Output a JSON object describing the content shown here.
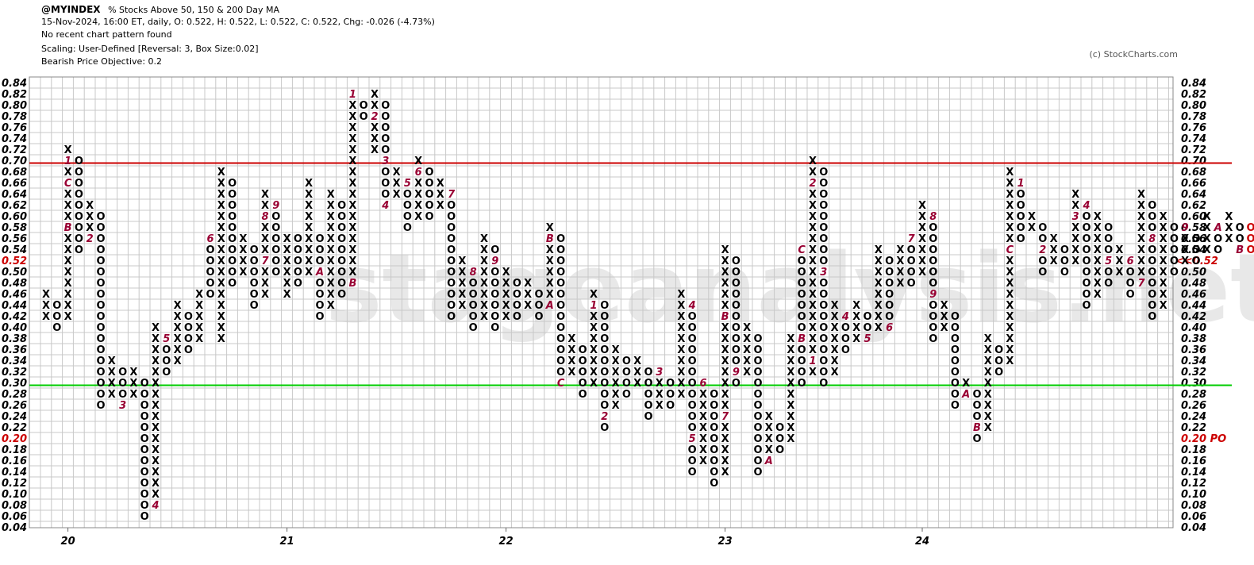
{
  "header": {
    "symbol": "@MYINDEX",
    "description": "% Stocks Above 50, 150 & 200 Day MA",
    "ohlc_line": "15-Nov-2024, 16:00 ET, daily, O: 0.522, H: 0.522, L: 0.522, C: 0.522, Chg: -0.026 (-4.73%)",
    "pattern": "No recent chart pattern found",
    "scaling": "Scaling: User-Defined [Reversal: 3, Box Size:0.02]",
    "objective": "Bearish Price Objective: 0.2"
  },
  "copyright": "(c) StockCharts.com",
  "watermark": "stageanalysis.net",
  "chart_data": {
    "type": "point-and-figure",
    "box_size": 0.02,
    "reversal": 3,
    "ylim": [
      0.04,
      0.84
    ],
    "y_ticks": [
      "0.84",
      "0.82",
      "0.80",
      "0.78",
      "0.76",
      "0.74",
      "0.72",
      "0.70",
      "0.68",
      "0.66",
      "0.64",
      "0.62",
      "0.60",
      "0.58",
      "0.56",
      "0.54",
      "0.52",
      "0.50",
      "0.48",
      "0.46",
      "0.44",
      "0.42",
      "0.40",
      "0.38",
      "0.36",
      "0.34",
      "0.32",
      "0.30",
      "0.28",
      "0.26",
      "0.24",
      "0.22",
      "0.20",
      "0.18",
      "0.16",
      "0.14",
      "0.12",
      "0.10",
      "0.08",
      "0.06",
      "0.04"
    ],
    "x_labels": [
      {
        "label": "20",
        "column": 2
      },
      {
        "label": "21",
        "column": 22
      },
      {
        "label": "22",
        "column": 42
      },
      {
        "label": "23",
        "column": 62
      },
      {
        "label": "24",
        "column": 80
      }
    ],
    "current_price": {
      "value": 0.52,
      "left_label": "0.52",
      "right_label": "<<0.52",
      "color": "#cc0000"
    },
    "price_objective": {
      "value": 0.2,
      "left_label": "0.20",
      "right_label": "0.20 PO",
      "color": "#cc0000"
    },
    "lines": [
      {
        "name": "resistance",
        "value": 0.695,
        "color": "#cc0000"
      },
      {
        "name": "support",
        "value": 0.295,
        "color": "#00cc00"
      }
    ],
    "columns": [
      {
        "t": "X",
        "lo": 0.42,
        "hi": 0.46
      },
      {
        "t": "O",
        "lo": 0.4,
        "hi": 0.44
      },
      {
        "t": "X",
        "lo": 0.42,
        "hi": 0.72,
        "m": [
          [
            0.7,
            "1"
          ],
          [
            0.66,
            "C"
          ],
          [
            0.58,
            "B"
          ]
        ]
      },
      {
        "t": "O",
        "lo": 0.54,
        "hi": 0.7
      },
      {
        "t": "X",
        "lo": 0.56,
        "hi": 0.62,
        "m": [
          [
            0.56,
            "2"
          ]
        ]
      },
      {
        "t": "O",
        "lo": 0.26,
        "hi": 0.6
      },
      {
        "t": "X",
        "lo": 0.28,
        "hi": 0.34
      },
      {
        "t": "O",
        "lo": 0.26,
        "hi": 0.32,
        "m": [
          [
            0.26,
            "3"
          ]
        ]
      },
      {
        "t": "X",
        "lo": 0.28,
        "hi": 0.32
      },
      {
        "t": "O",
        "lo": 0.06,
        "hi": 0.3
      },
      {
        "t": "X",
        "lo": 0.08,
        "hi": 0.4,
        "m": [
          [
            0.08,
            "4"
          ]
        ]
      },
      {
        "t": "O",
        "lo": 0.32,
        "hi": 0.38,
        "m": [
          [
            0.38,
            "5"
          ]
        ]
      },
      {
        "t": "X",
        "lo": 0.34,
        "hi": 0.44
      },
      {
        "t": "O",
        "lo": 0.36,
        "hi": 0.42
      },
      {
        "t": "X",
        "lo": 0.38,
        "hi": 0.46
      },
      {
        "t": "O",
        "lo": 0.46,
        "hi": 0.56,
        "m": [
          [
            0.56,
            "6"
          ]
        ]
      },
      {
        "t": "X",
        "lo": 0.38,
        "hi": 0.68
      },
      {
        "t": "O",
        "lo": 0.48,
        "hi": 0.66
      },
      {
        "t": "X",
        "lo": 0.5,
        "hi": 0.56
      },
      {
        "t": "O",
        "lo": 0.44,
        "hi": 0.54
      },
      {
        "t": "X",
        "lo": 0.46,
        "hi": 0.64,
        "m": [
          [
            0.6,
            "8"
          ],
          [
            0.52,
            "7"
          ]
        ]
      },
      {
        "t": "O",
        "lo": 0.5,
        "hi": 0.62,
        "m": [
          [
            0.62,
            "9"
          ]
        ]
      },
      {
        "t": "X",
        "lo": 0.46,
        "hi": 0.56
      },
      {
        "t": "O",
        "lo": 0.48,
        "hi": 0.56
      },
      {
        "t": "X",
        "lo": 0.5,
        "hi": 0.66
      },
      {
        "t": "O",
        "lo": 0.42,
        "hi": 0.56,
        "m": [
          [
            0.5,
            "A"
          ]
        ]
      },
      {
        "t": "X",
        "lo": 0.44,
        "hi": 0.64
      },
      {
        "t": "O",
        "lo": 0.46,
        "hi": 0.62
      },
      {
        "t": "X",
        "lo": 0.48,
        "hi": 0.82,
        "m": [
          [
            0.82,
            "1"
          ],
          [
            0.48,
            "B"
          ]
        ]
      },
      {
        "t": "O",
        "lo": 0.78,
        "hi": 0.8
      },
      {
        "t": "X",
        "lo": 0.72,
        "hi": 0.82,
        "m": [
          [
            0.78,
            "2"
          ]
        ]
      },
      {
        "t": "O",
        "lo": 0.62,
        "hi": 0.8,
        "m": [
          [
            0.7,
            "3"
          ],
          [
            0.62,
            "4"
          ]
        ]
      },
      {
        "t": "X",
        "lo": 0.64,
        "hi": 0.68
      },
      {
        "t": "O",
        "lo": 0.58,
        "hi": 0.66,
        "m": [
          [
            0.66,
            "5"
          ]
        ]
      },
      {
        "t": "X",
        "lo": 0.6,
        "hi": 0.7,
        "m": [
          [
            0.68,
            "6"
          ]
        ]
      },
      {
        "t": "O",
        "lo": 0.6,
        "hi": 0.68
      },
      {
        "t": "X",
        "lo": 0.62,
        "hi": 0.66
      },
      {
        "t": "O",
        "lo": 0.42,
        "hi": 0.64,
        "m": [
          [
            0.64,
            "7"
          ]
        ]
      },
      {
        "t": "X",
        "lo": 0.44,
        "hi": 0.52
      },
      {
        "t": "O",
        "lo": 0.4,
        "hi": 0.5,
        "m": [
          [
            0.5,
            "8"
          ]
        ]
      },
      {
        "t": "X",
        "lo": 0.42,
        "hi": 0.56
      },
      {
        "t": "O",
        "lo": 0.4,
        "hi": 0.54,
        "m": [
          [
            0.52,
            "9"
          ]
        ]
      },
      {
        "t": "X",
        "lo": 0.42,
        "hi": 0.5
      },
      {
        "t": "O",
        "lo": 0.42,
        "hi": 0.48
      },
      {
        "t": "X",
        "lo": 0.44,
        "hi": 0.48
      },
      {
        "t": "O",
        "lo": 0.42,
        "hi": 0.46
      },
      {
        "t": "X",
        "lo": 0.44,
        "hi": 0.58,
        "m": [
          [
            0.56,
            "B"
          ],
          [
            0.44,
            "A"
          ]
        ]
      },
      {
        "t": "O",
        "lo": 0.3,
        "hi": 0.56,
        "m": [
          [
            0.3,
            "C"
          ]
        ]
      },
      {
        "t": "X",
        "lo": 0.32,
        "hi": 0.38
      },
      {
        "t": "O",
        "lo": 0.28,
        "hi": 0.36
      },
      {
        "t": "X",
        "lo": 0.3,
        "hi": 0.46,
        "m": [
          [
            0.44,
            "1"
          ]
        ]
      },
      {
        "t": "O",
        "lo": 0.22,
        "hi": 0.44,
        "m": [
          [
            0.24,
            "2"
          ]
        ]
      },
      {
        "t": "X",
        "lo": 0.26,
        "hi": 0.36
      },
      {
        "t": "O",
        "lo": 0.28,
        "hi": 0.34
      },
      {
        "t": "X",
        "lo": 0.3,
        "hi": 0.34
      },
      {
        "t": "O",
        "lo": 0.24,
        "hi": 0.32
      },
      {
        "t": "X",
        "lo": 0.26,
        "hi": 0.32,
        "m": [
          [
            0.32,
            "3"
          ]
        ]
      },
      {
        "t": "O",
        "lo": 0.26,
        "hi": 0.3
      },
      {
        "t": "X",
        "lo": 0.28,
        "hi": 0.46
      },
      {
        "t": "O",
        "lo": 0.14,
        "hi": 0.44,
        "m": [
          [
            0.44,
            "4"
          ],
          [
            0.2,
            "5"
          ]
        ]
      },
      {
        "t": "X",
        "lo": 0.16,
        "hi": 0.3,
        "m": [
          [
            0.3,
            "6"
          ]
        ]
      },
      {
        "t": "O",
        "lo": 0.12,
        "hi": 0.28
      },
      {
        "t": "X",
        "lo": 0.14,
        "hi": 0.54,
        "m": [
          [
            0.42,
            "B"
          ],
          [
            0.24,
            "7"
          ]
        ]
      },
      {
        "t": "O",
        "lo": 0.3,
        "hi": 0.52,
        "m": [
          [
            0.32,
            "9"
          ]
        ]
      },
      {
        "t": "X",
        "lo": 0.32,
        "hi": 0.4
      },
      {
        "t": "O",
        "lo": 0.14,
        "hi": 0.38
      },
      {
        "t": "X",
        "lo": 0.16,
        "hi": 0.24,
        "m": [
          [
            0.16,
            "A"
          ]
        ]
      },
      {
        "t": "O",
        "lo": 0.18,
        "hi": 0.22
      },
      {
        "t": "X",
        "lo": 0.2,
        "hi": 0.38
      },
      {
        "t": "O",
        "lo": 0.3,
        "hi": 0.54,
        "m": [
          [
            0.54,
            "C"
          ],
          [
            0.38,
            "B"
          ]
        ]
      },
      {
        "t": "X",
        "lo": 0.32,
        "hi": 0.7,
        "m": [
          [
            0.66,
            "2"
          ],
          [
            0.34,
            "1"
          ]
        ]
      },
      {
        "t": "O",
        "lo": 0.3,
        "hi": 0.68,
        "m": [
          [
            0.5,
            "3"
          ]
        ]
      },
      {
        "t": "X",
        "lo": 0.32,
        "hi": 0.44
      },
      {
        "t": "O",
        "lo": 0.36,
        "hi": 0.42,
        "m": [
          [
            0.42,
            "4"
          ]
        ]
      },
      {
        "t": "X",
        "lo": 0.38,
        "hi": 0.44
      },
      {
        "t": "O",
        "lo": 0.38,
        "hi": 0.42,
        "m": [
          [
            0.38,
            "5"
          ]
        ]
      },
      {
        "t": "X",
        "lo": 0.4,
        "hi": 0.54
      },
      {
        "t": "O",
        "lo": 0.4,
        "hi": 0.52,
        "m": [
          [
            0.4,
            "6"
          ]
        ]
      },
      {
        "t": "X",
        "lo": 0.48,
        "hi": 0.54
      },
      {
        "t": "O",
        "lo": 0.48,
        "hi": 0.56,
        "m": [
          [
            0.56,
            "7"
          ]
        ]
      },
      {
        "t": "X",
        "lo": 0.5,
        "hi": 0.62
      },
      {
        "t": "O",
        "lo": 0.38,
        "hi": 0.6,
        "m": [
          [
            0.6,
            "8"
          ],
          [
            0.46,
            "9"
          ]
        ]
      },
      {
        "t": "X",
        "lo": 0.4,
        "hi": 0.44
      },
      {
        "t": "O",
        "lo": 0.26,
        "hi": 0.42
      },
      {
        "t": "X",
        "lo": 0.28,
        "hi": 0.3,
        "m": [
          [
            0.28,
            "A"
          ]
        ]
      },
      {
        "t": "O",
        "lo": 0.2,
        "hi": 0.28,
        "m": [
          [
            0.22,
            "B"
          ]
        ]
      },
      {
        "t": "X",
        "lo": 0.22,
        "hi": 0.38
      },
      {
        "t": "O",
        "lo": 0.32,
        "hi": 0.36
      },
      {
        "t": "X",
        "lo": 0.34,
        "hi": 0.68,
        "m": [
          [
            0.54,
            "C"
          ]
        ]
      },
      {
        "t": "O",
        "lo": 0.56,
        "hi": 0.66,
        "m": [
          [
            0.66,
            "1"
          ]
        ]
      },
      {
        "t": "X",
        "lo": 0.58,
        "hi": 0.6
      },
      {
        "t": "O",
        "lo": 0.5,
        "hi": 0.58,
        "m": [
          [
            0.54,
            "2"
          ]
        ]
      },
      {
        "t": "X",
        "lo": 0.52,
        "hi": 0.56
      },
      {
        "t": "O",
        "lo": 0.5,
        "hi": 0.54
      },
      {
        "t": "X",
        "lo": 0.52,
        "hi": 0.64,
        "m": [
          [
            0.6,
            "3"
          ]
        ]
      },
      {
        "t": "O",
        "lo": 0.44,
        "hi": 0.62,
        "m": [
          [
            0.62,
            "4"
          ]
        ]
      },
      {
        "t": "X",
        "lo": 0.46,
        "hi": 0.6
      },
      {
        "t": "O",
        "lo": 0.48,
        "hi": 0.58,
        "m": [
          [
            0.52,
            "5"
          ]
        ]
      },
      {
        "t": "X",
        "lo": 0.5,
        "hi": 0.54
      },
      {
        "t": "O",
        "lo": 0.46,
        "hi": 0.52,
        "m": [
          [
            0.52,
            "6"
          ]
        ]
      },
      {
        "t": "X",
        "lo": 0.48,
        "hi": 0.64,
        "m": [
          [
            0.48,
            "7"
          ]
        ]
      },
      {
        "t": "O",
        "lo": 0.42,
        "hi": 0.62,
        "m": [
          [
            0.56,
            "8"
          ]
        ]
      },
      {
        "t": "X",
        "lo": 0.44,
        "hi": 0.6
      },
      {
        "t": "O",
        "lo": 0.5,
        "hi": 0.58
      },
      {
        "t": "X",
        "lo": 0.52,
        "hi": 0.58,
        "m": [
          [
            0.58,
            "9"
          ]
        ]
      },
      {
        "t": "O",
        "lo": 0.52,
        "hi": 0.56
      },
      {
        "t": "X",
        "lo": 0.54,
        "hi": 0.6
      },
      {
        "t": "O",
        "lo": 0.54,
        "hi": 0.58,
        "m": [
          [
            0.58,
            "A"
          ]
        ]
      },
      {
        "t": "X",
        "lo": 0.56,
        "hi": 0.6
      },
      {
        "t": "O",
        "lo": 0.54,
        "hi": 0.58,
        "m": [
          [
            0.54,
            "B"
          ]
        ]
      },
      {
        "t": "O",
        "lo": 0.54,
        "hi": 0.58,
        "red": true
      }
    ]
  }
}
